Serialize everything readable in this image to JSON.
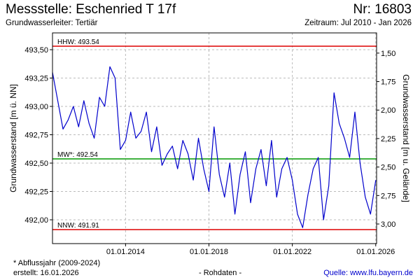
{
  "header": {
    "title": "Messstelle: Eschenried T 17f",
    "number": "Nr: 16803",
    "aquifer": "Grundwasserleiter: Tertiär",
    "period": "Zeitraum: Jul 2010 - Jan 2026"
  },
  "footer": {
    "note": "* Abflussjahr (2009-2024)",
    "created": "erstellt:  16.01.2026",
    "rawdata": "- Rohdaten -",
    "source": "Quelle:  www.lfu.bayern.de"
  },
  "colors": {
    "series": "#0000cc",
    "hhw": "#dd0000",
    "nnw": "#dd0000",
    "mw": "#009900",
    "grid": "#bbbbbb"
  },
  "chart_data": {
    "type": "line",
    "xlabel": "",
    "ylabel": "Grundwasserstand [m ü. NN]",
    "ylabel_right": "Grundwasserstand [m u. Gelände]",
    "xlim": [
      "2010-07-01",
      "2026-01-16"
    ],
    "ylim": [
      491.91,
      493.54
    ],
    "y_ticks": [
      "492,00",
      "492,25",
      "492,50",
      "492,75",
      "493,00",
      "493,25",
      "493,50"
    ],
    "y_right_ticks": [
      "1,50",
      "1,75",
      "2,00",
      "2,25",
      "2,50",
      "2,75",
      "3,00"
    ],
    "x_ticks": [
      "01.01.2014",
      "01.01.2018",
      "01.01.2022",
      "01.01.2026"
    ],
    "grid": true,
    "reference_lines": [
      {
        "label": "HHW: 493.54",
        "value": 493.54
      },
      {
        "label": "MW*: 492.54",
        "value": 492.54
      },
      {
        "label": "NNW: 491.91",
        "value": 491.91
      }
    ],
    "series": [
      {
        "x": [
          "2010-07-01",
          "2010-10-01",
          "2011-01-01",
          "2011-04-01",
          "2011-07-01",
          "2011-10-01",
          "2012-01-01",
          "2012-04-01",
          "2012-07-01",
          "2012-10-01",
          "2013-01-01",
          "2013-04-01",
          "2013-07-01",
          "2013-10-01",
          "2014-01-01",
          "2014-04-01",
          "2014-07-01",
          "2014-10-01",
          "2015-01-01",
          "2015-04-01",
          "2015-07-01",
          "2015-10-01",
          "2016-01-01",
          "2016-04-01",
          "2016-07-01",
          "2016-10-01",
          "2017-01-01",
          "2017-04-01",
          "2017-07-01",
          "2017-10-01",
          "2018-01-01",
          "2018-04-01",
          "2018-07-01",
          "2018-10-01",
          "2019-01-01",
          "2019-04-01",
          "2019-07-01",
          "2019-10-01",
          "2020-01-01",
          "2020-04-01",
          "2020-07-01",
          "2020-10-01",
          "2021-01-01",
          "2021-04-01",
          "2021-07-01",
          "2021-10-01",
          "2022-01-01",
          "2022-04-01",
          "2022-07-01",
          "2022-10-01",
          "2023-01-01",
          "2023-04-01",
          "2023-07-01",
          "2023-10-01",
          "2024-01-01",
          "2024-04-01",
          "2024-07-01",
          "2024-10-01",
          "2025-01-01",
          "2025-04-01",
          "2025-07-01",
          "2025-10-01",
          "2026-01-01"
        ],
        "values": [
          493.3,
          493.05,
          492.8,
          492.88,
          493.0,
          492.82,
          493.05,
          492.85,
          492.72,
          493.08,
          493.0,
          493.35,
          493.25,
          492.62,
          492.7,
          492.95,
          492.72,
          492.78,
          492.95,
          492.6,
          492.82,
          492.48,
          492.58,
          492.65,
          492.45,
          492.7,
          492.58,
          492.35,
          492.72,
          492.45,
          492.25,
          492.82,
          492.4,
          492.2,
          492.5,
          492.05,
          492.4,
          492.6,
          492.15,
          492.45,
          492.62,
          492.3,
          492.7,
          492.2,
          492.45,
          492.55,
          492.35,
          492.05,
          491.93,
          492.22,
          492.45,
          492.55,
          492.0,
          492.3,
          493.12,
          492.85,
          492.72,
          492.55,
          492.95,
          492.5,
          492.2,
          492.05,
          492.35
        ]
      }
    ]
  }
}
